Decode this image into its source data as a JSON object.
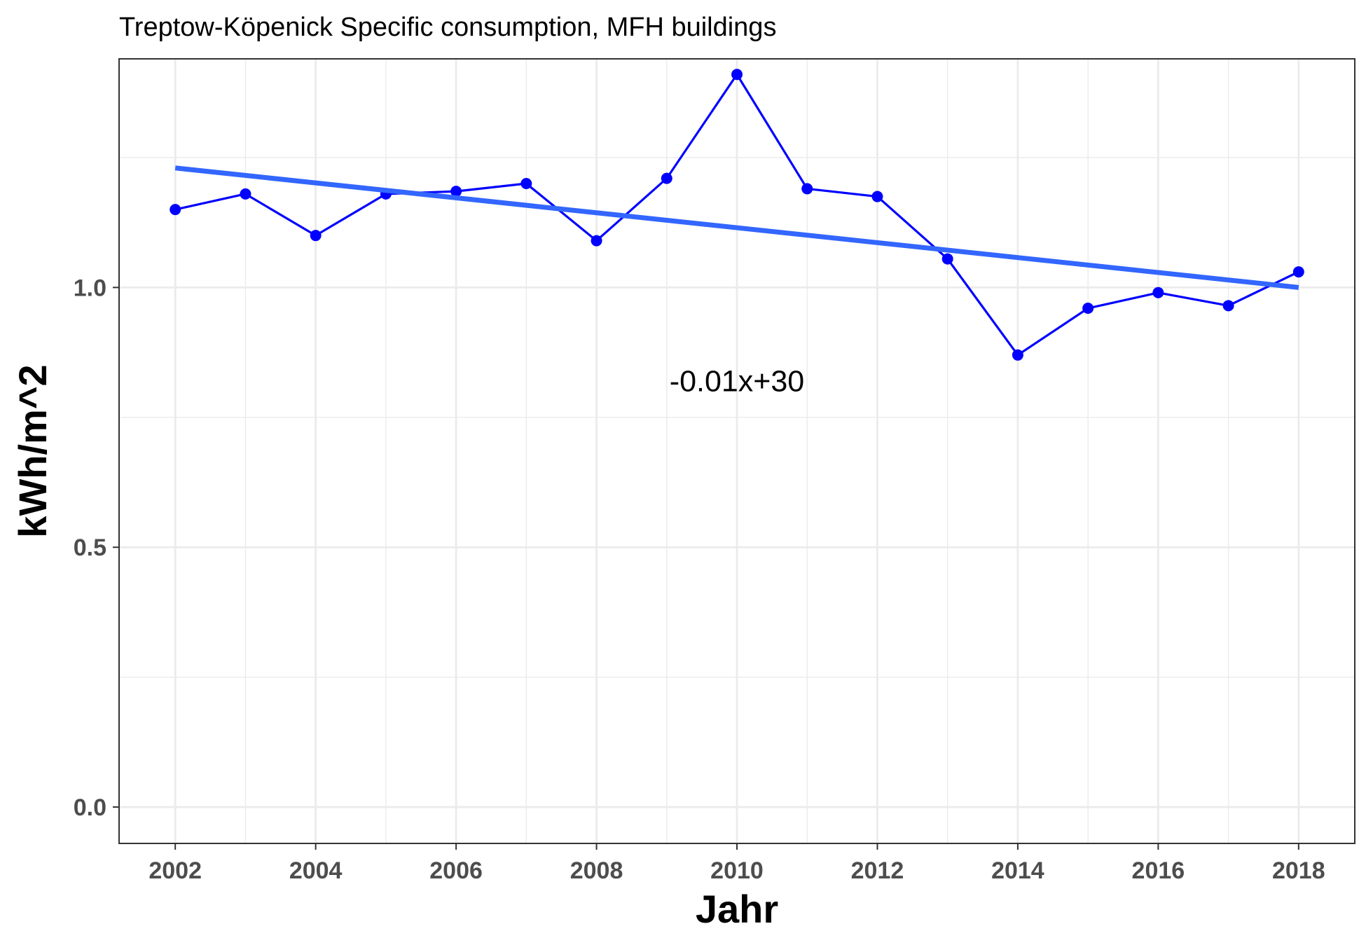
{
  "chart_data": {
    "type": "line",
    "title": "Treptow-Köpenick Specific consumption, MFH buildings",
    "xlabel": "Jahr",
    "ylabel": "kWh/m^2",
    "xlim": [
      2001.2,
      2018.8
    ],
    "ylim": [
      -0.07,
      1.44
    ],
    "x_ticks": [
      2002,
      2004,
      2006,
      2008,
      2010,
      2012,
      2014,
      2016,
      2018
    ],
    "x_tick_labels": [
      "2002",
      "2004",
      "2006",
      "2008",
      "2010",
      "2012",
      "2014",
      "2016",
      "2018"
    ],
    "y_ticks": [
      0.0,
      0.5,
      1.0
    ],
    "y_tick_labels": [
      "0.0",
      "0.5",
      "1.0"
    ],
    "grid": true,
    "series": [
      {
        "color": "#0000ff",
        "x": [
          2002,
          2003,
          2004,
          2005,
          2006,
          2007,
          2008,
          2009,
          2010,
          2011,
          2012,
          2013,
          2014,
          2015,
          2016,
          2017,
          2018
        ],
        "values": [
          1.15,
          1.18,
          1.1,
          1.18,
          1.185,
          1.2,
          1.09,
          1.21,
          1.41,
          1.19,
          1.175,
          1.055,
          0.87,
          0.96,
          0.99,
          0.965,
          1.03
        ]
      }
    ],
    "trendline": {
      "color": "#3366ff",
      "x": [
        2002,
        2018
      ],
      "y": [
        1.23,
        1.0
      ]
    },
    "annotations": [
      {
        "text": "-0.01x+30",
        "x": 2010,
        "y": 0.8
      }
    ]
  }
}
